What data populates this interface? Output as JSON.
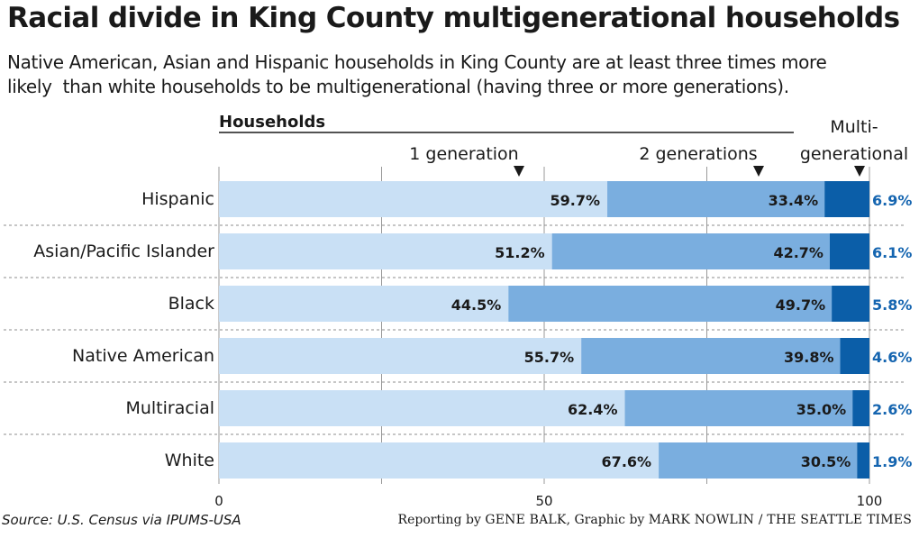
{
  "title": "Racial divide in King County multigenerational households",
  "subtitle_lines": [
    "Native American, Asian and Hispanic households in King County are at least three times more",
    "likely  than white households to be multigenerational (having three or more generations)."
  ],
  "source": "Source: U.S. Census via IPUMS-USA",
  "credit": {
    "prefix": "Reporting by ",
    "reporter": "GENE BALK",
    "middle": ", Graphic by ",
    "artist": "MARK NOWLIN / THE SEATTLE TIMES"
  },
  "colors": {
    "one_generation": "#c9e0f5",
    "two_generations": "#7aaedf",
    "multigenerational": "#0b5ea8",
    "outside_label": "#1565b0"
  },
  "chart_data": {
    "type": "bar",
    "orientation": "horizontal",
    "stacked": true,
    "header": "Households",
    "categories": [
      "Hispanic",
      "Asian/Pacific Islander",
      "Black",
      "Native American",
      "Multiracial",
      "White"
    ],
    "series": [
      {
        "name": "1 generation",
        "values": [
          59.7,
          51.2,
          44.5,
          55.7,
          62.4,
          67.6
        ],
        "labels": [
          "59.7%",
          "51.2%",
          "44.5%",
          "55.7%",
          "62.4%",
          "67.6%"
        ]
      },
      {
        "name": "2 generations",
        "values": [
          33.4,
          42.7,
          49.7,
          39.8,
          35.0,
          30.5
        ],
        "labels": [
          "33.4%",
          "42.7%",
          "49.7%",
          "39.8%",
          "35.0%",
          "30.5%"
        ]
      },
      {
        "name": "Multi-generational",
        "name_lines": [
          "Multi-",
          "generational"
        ],
        "values": [
          6.9,
          6.1,
          5.8,
          4.6,
          2.6,
          1.9
        ],
        "labels": [
          "6.9%",
          "6.1%",
          "5.8%",
          "4.6%",
          "2.6%",
          "1.9%"
        ]
      }
    ],
    "xlim": [
      0,
      100
    ],
    "xticks": [
      "0",
      "50",
      "100"
    ],
    "grid": true
  }
}
